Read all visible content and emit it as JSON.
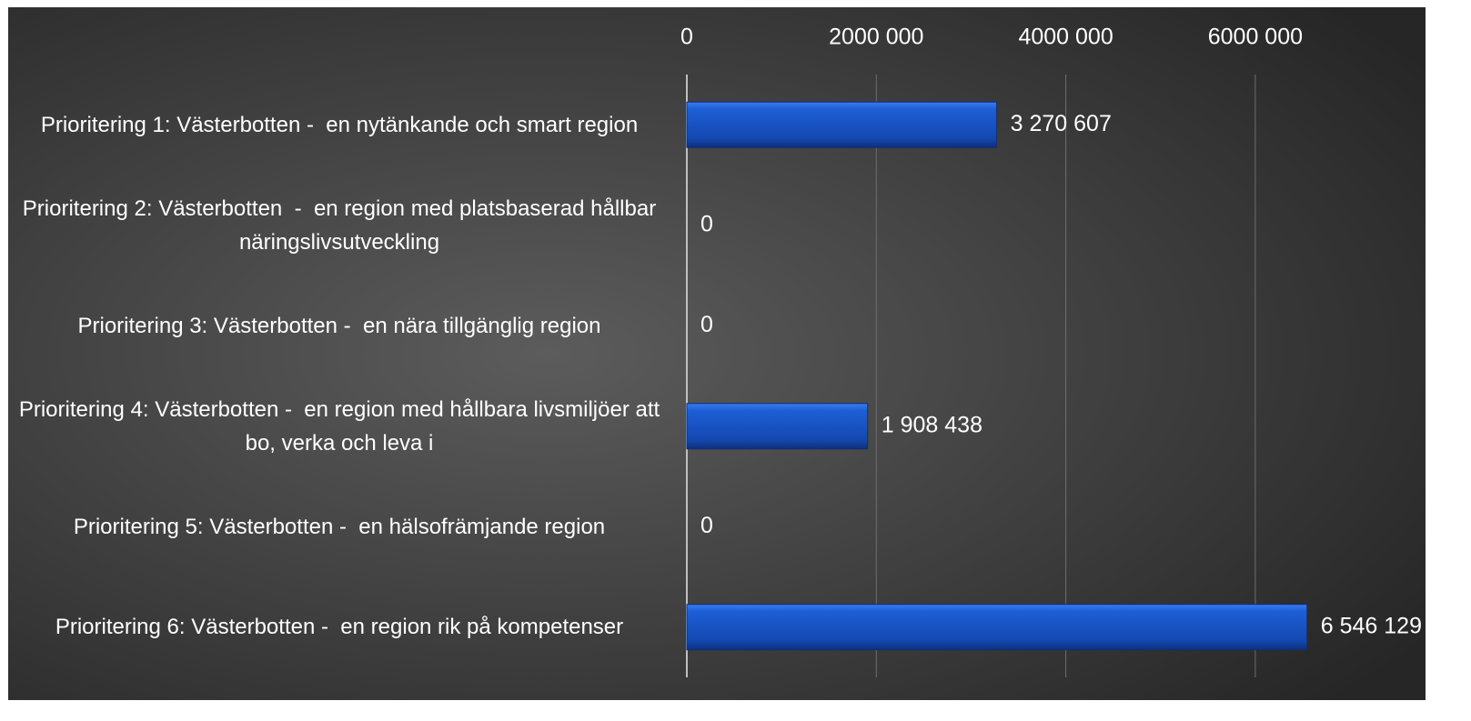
{
  "chart_data": {
    "type": "bar",
    "orientation": "horizontal",
    "categories": [
      "Prioritering 1: Västerbotten -  en nytänkande och smart region",
      "Prioritering 2: Västerbotten  -  en region med platsbaserad hållbar näringslivsutveckling",
      "Prioritering 3: Västerbotten -  en nära tillgänglig region",
      "Prioritering 4: Västerbotten -  en region med hållbara livsmiljöer att bo, verka och leva i",
      "Prioritering 5: Västerbotten -  en hälsofrämjande region",
      "Prioritering 6: Västerbotten -  en region rik på kompetenser"
    ],
    "values": [
      3270607,
      0,
      0,
      1908438,
      0,
      6546129
    ],
    "value_labels": [
      "3 270 607",
      "0",
      "0",
      "1 908 438",
      "0",
      "6 546 129"
    ],
    "color": "#1a56c8",
    "xlim": [
      0,
      7000000
    ],
    "xticks": [
      0,
      {
        "value": 2000000,
        "label": "2000 000"
      },
      {
        "value": 4000000,
        "label": "4000 000"
      },
      {
        "value": 6000000,
        "label": "6000 000"
      }
    ],
    "grid": true
  }
}
